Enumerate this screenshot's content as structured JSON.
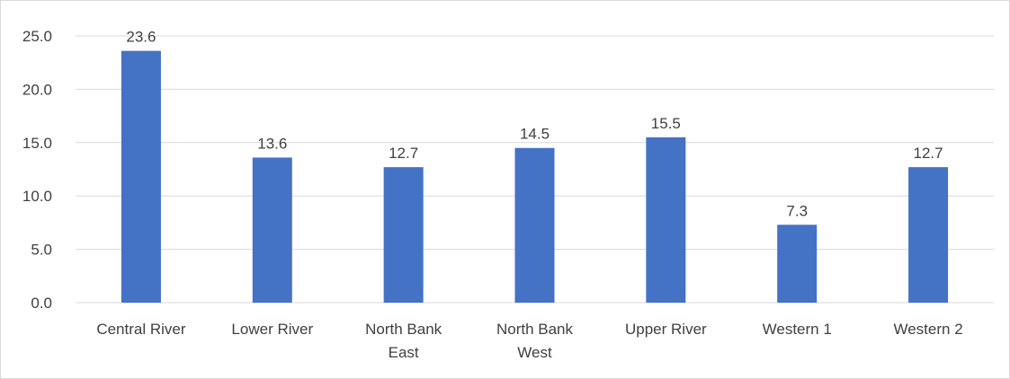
{
  "chart_data": {
    "type": "bar",
    "categories": [
      [
        "Central River"
      ],
      [
        "Lower River"
      ],
      [
        "North Bank",
        "East"
      ],
      [
        "North Bank",
        "West"
      ],
      [
        "Upper River"
      ],
      [
        "Western 1"
      ],
      [
        "Western 2"
      ]
    ],
    "values": [
      23.6,
      13.6,
      12.7,
      14.5,
      15.5,
      7.3,
      12.7
    ],
    "value_labels": [
      "23.6",
      "13.6",
      "12.7",
      "14.5",
      "15.5",
      "7.3",
      "12.7"
    ],
    "y_ticks": [
      "0.0",
      "5.0",
      "10.0",
      "15.0",
      "20.0",
      "25.0"
    ],
    "ylim": [
      0,
      25
    ],
    "title": "",
    "xlabel": "",
    "ylabel": "",
    "grid": true,
    "legend": "none",
    "colors": {
      "bar": "#4472C4",
      "grid": "#d9d9d9",
      "text": "#404040"
    }
  }
}
